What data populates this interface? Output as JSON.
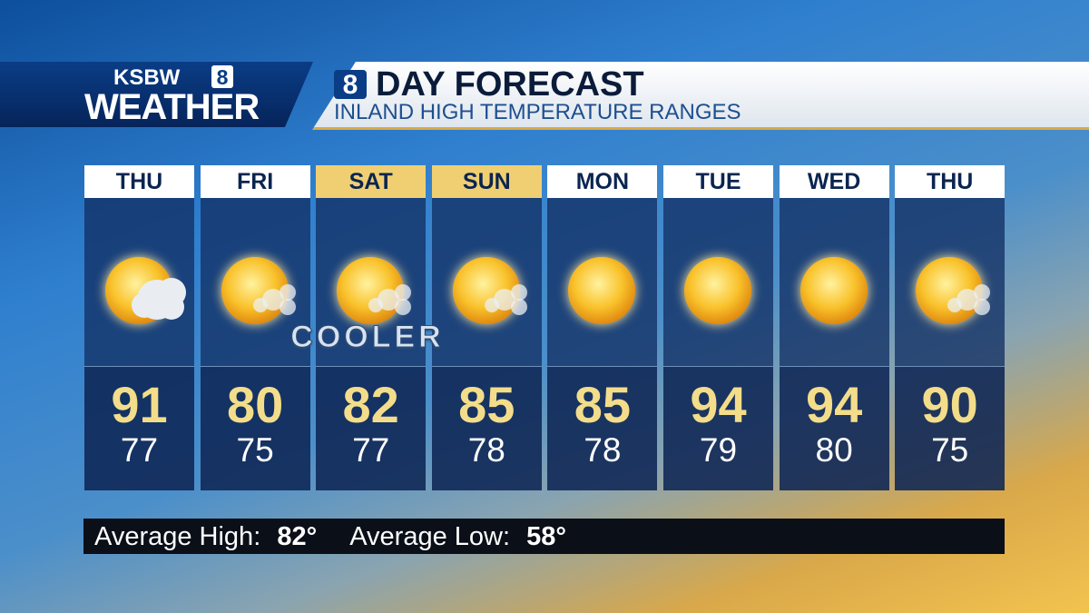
{
  "logo": {
    "station": "KSBW",
    "channel": "8",
    "label": "WEATHER"
  },
  "title": {
    "channel": "8",
    "text": "DAY FORECAST",
    "subtitle": "INLAND HIGH TEMPERATURE RANGES"
  },
  "annotation": "COOLER",
  "days": [
    {
      "day": "THU",
      "high": 91,
      "low": 77,
      "icon": "partly-cloudy",
      "header_color": "#ffffff"
    },
    {
      "day": "FRI",
      "high": 80,
      "low": 75,
      "icon": "hazy-sun",
      "header_color": "#ffffff"
    },
    {
      "day": "SAT",
      "high": 82,
      "low": 77,
      "icon": "hazy-sun",
      "header_color": "#f0cf72"
    },
    {
      "day": "SUN",
      "high": 85,
      "low": 78,
      "icon": "hazy-sun",
      "header_color": "#f0cf72"
    },
    {
      "day": "MON",
      "high": 85,
      "low": 78,
      "icon": "sunny",
      "header_color": "#ffffff"
    },
    {
      "day": "TUE",
      "high": 94,
      "low": 79,
      "icon": "sunny",
      "header_color": "#ffffff"
    },
    {
      "day": "WED",
      "high": 94,
      "low": 80,
      "icon": "sunny",
      "header_color": "#ffffff"
    },
    {
      "day": "THU",
      "high": 90,
      "low": 75,
      "icon": "hazy-sun",
      "header_color": "#ffffff"
    }
  ],
  "footer": {
    "avg_high_label": "Average High:",
    "avg_high": "82°",
    "avg_low_label": "Average Low:",
    "avg_low": "58°"
  }
}
